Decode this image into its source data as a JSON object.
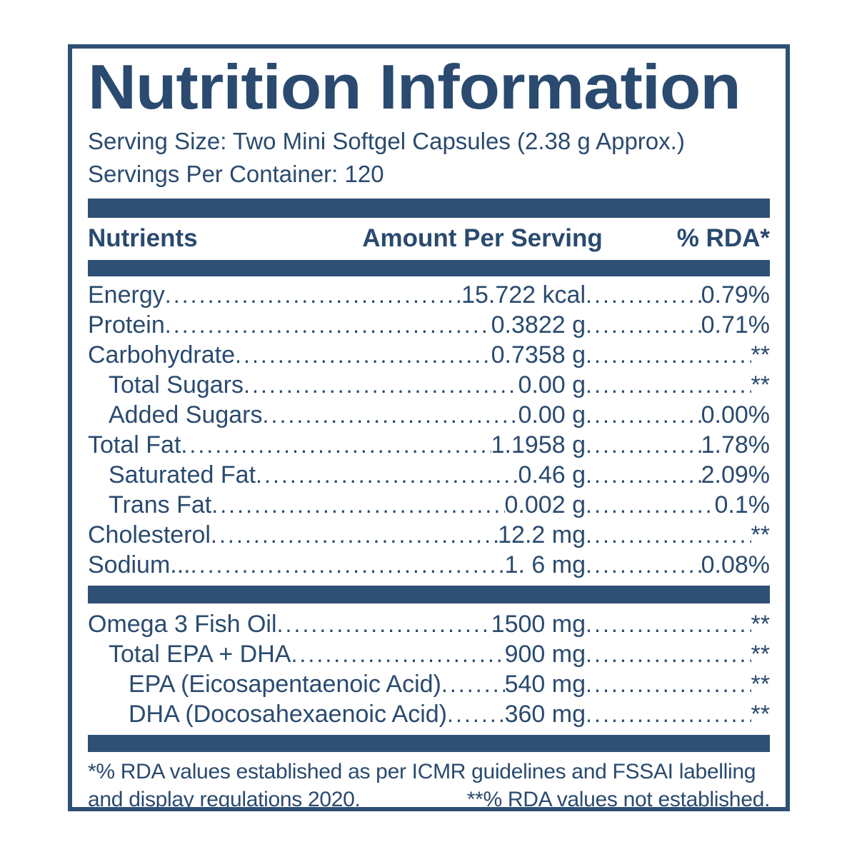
{
  "colors": {
    "navy_text": "#2A4A6F",
    "navy_bar": "#2F5075",
    "border": "#2F5075",
    "background": "#FFFFFF"
  },
  "header": {
    "title": "Nutrition Information",
    "serving_size": "Serving Size: Two Mini Softgel Capsules (2.38 g Approx.)",
    "servings_per_container": "Servings Per Container: 120"
  },
  "table": {
    "columns": {
      "nutrient": "Nutrients",
      "amount": "Amount Per Serving",
      "rda": "% RDA*"
    },
    "rows": [
      {
        "name": "Energy",
        "amount": "15.722 kcal",
        "rda": "0.79%",
        "indent": 0
      },
      {
        "name": "Protein",
        "amount": "0.3822 g",
        "rda": "0.71%",
        "indent": 0
      },
      {
        "name": "Carbohydrate",
        "amount": "0.7358 g",
        "rda": "**",
        "indent": 0
      },
      {
        "name": "Total Sugars",
        "amount": "0.00 g",
        "rda": "**",
        "indent": 1
      },
      {
        "name": "Added Sugars",
        "amount": "0.00 g",
        "rda": "0.00%",
        "indent": 1
      },
      {
        "name": "Total Fat",
        "amount": "1.1958 g",
        "rda": "1.78%",
        "indent": 0
      },
      {
        "name": "Saturated Fat",
        "amount": "0.46 g",
        "rda": "2.09%",
        "indent": 1
      },
      {
        "name": "Trans Fat",
        "amount": "0.002 g",
        "rda": "0.1%",
        "indent": 1
      },
      {
        "name": "Cholesterol",
        "amount": "12.2 mg",
        "rda": "**",
        "indent": 0
      },
      {
        "name": "Sodium...",
        "amount": "1. 6 mg",
        "rda": "0.08%",
        "indent": 0
      }
    ],
    "omega_rows": [
      {
        "name": "Omega 3 Fish Oil",
        "amount": "1500 mg",
        "rda": "**",
        "indent": 0
      },
      {
        "name": "Total EPA + DHA",
        "amount": "900 mg",
        "rda": "**",
        "indent": 1
      },
      {
        "name": "EPA (Eicosapentaenoic Acid)",
        "amount": "540 mg",
        "rda": "**",
        "indent": 2
      },
      {
        "name": "DHA (Docosahexaenoic Acid)",
        "amount": "360 mg",
        "rda": "**",
        "indent": 2
      }
    ]
  },
  "footnotes": {
    "line1": "*% RDA values established as per ICMR guidelines and FSSAI labelling",
    "line2_left": "and display regulations 2020.",
    "line2_right": "**% RDA values not established."
  }
}
